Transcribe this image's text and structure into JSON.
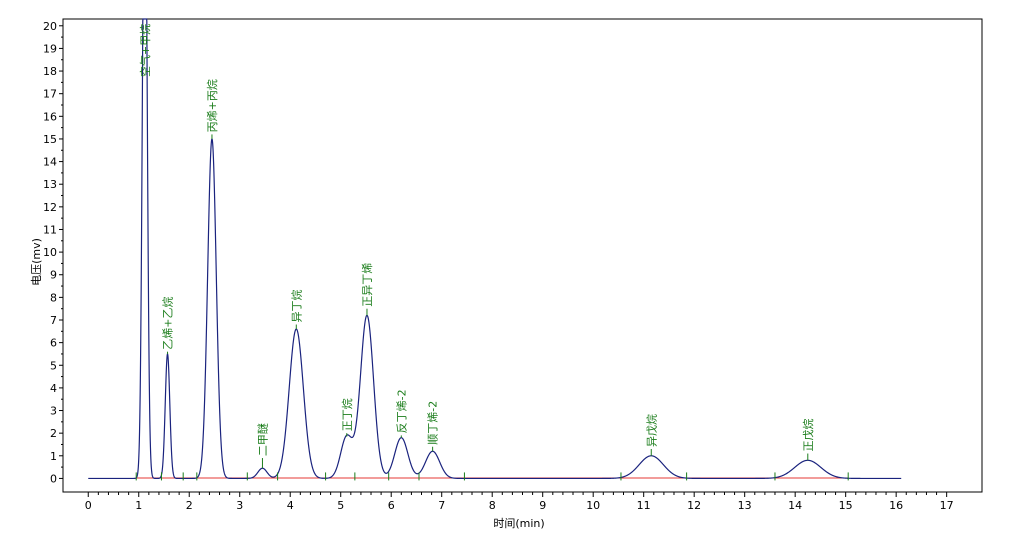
{
  "chart_data": {
    "type": "line",
    "xlabel": "时间(min)",
    "ylabel": "电压(mv)",
    "xlim": [
      -0.5,
      17.7
    ],
    "ylim": [
      -0.6,
      20.3
    ],
    "x_ticks": [
      0,
      1,
      2,
      3,
      4,
      5,
      6,
      7,
      8,
      9,
      10,
      11,
      12,
      13,
      14,
      15,
      16,
      17
    ],
    "y_ticks": [
      0,
      1,
      2,
      3,
      4,
      5,
      6,
      7,
      8,
      9,
      10,
      11,
      12,
      13,
      14,
      15,
      16,
      17,
      18,
      19,
      20
    ],
    "grid": false,
    "x_range_signal": [
      0,
      16.1
    ],
    "colors": {
      "signal": "#1a237e",
      "baseline": "#e53935",
      "peak_label": "#1b7d1b",
      "marker": "#1b7d1b",
      "axis": "#000000"
    },
    "peaks": [
      {
        "name": "空气+甲烷",
        "rt": 1.12,
        "height": 30.0,
        "width": 0.045,
        "label_y": 20.3,
        "clipped": true
      },
      {
        "name": "乙烯+乙烷",
        "rt": 1.57,
        "height": 5.5,
        "width": 0.045,
        "label_y": 5.6
      },
      {
        "name": "丙烯+丙烷",
        "rt": 2.45,
        "height": 15.0,
        "width": 0.085,
        "label_y": 15.2
      },
      {
        "name": "二甲醚",
        "rt": 3.45,
        "height": 0.45,
        "width": 0.09,
        "label_y": 0.9
      },
      {
        "name": "异丁烷",
        "rt": 4.12,
        "height": 6.6,
        "width": 0.14,
        "label_y": 6.8
      },
      {
        "name": "正丁烷",
        "rt": 5.12,
        "height": 1.85,
        "width": 0.12,
        "label_y": 2.0
      },
      {
        "name": "正异丁烯",
        "rt": 5.52,
        "height": 7.2,
        "width": 0.13,
        "label_y": 7.5
      },
      {
        "name": "反丁烯-2",
        "rt": 6.2,
        "height": 1.8,
        "width": 0.13,
        "label_y": 1.9
      },
      {
        "name": "顺丁烯-2",
        "rt": 6.82,
        "height": 1.2,
        "width": 0.14,
        "label_y": 1.4
      },
      {
        "name": "异戊烷",
        "rt": 11.15,
        "height": 1.0,
        "width": 0.24,
        "label_y": 1.3
      },
      {
        "name": "正戊烷",
        "rt": 14.25,
        "height": 0.8,
        "width": 0.26,
        "label_y": 1.1
      }
    ],
    "markers_x": [
      0.95,
      1.45,
      1.88,
      2.15,
      3.15,
      3.75,
      4.7,
      5.28,
      5.95,
      6.55,
      7.45,
      10.55,
      11.85,
      13.6,
      15.05
    ]
  }
}
